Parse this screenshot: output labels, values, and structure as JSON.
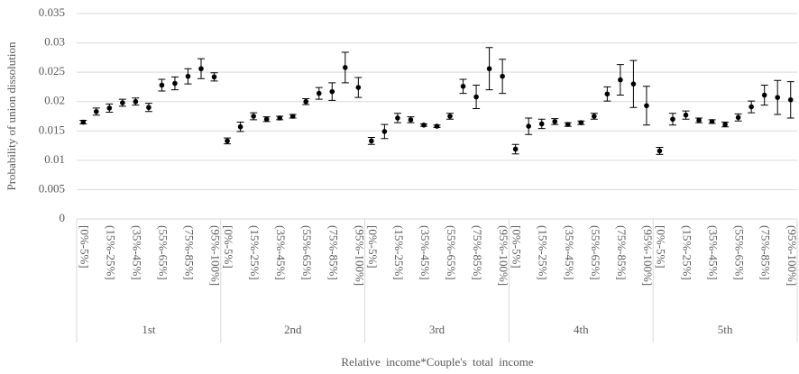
{
  "chart_data": {
    "type": "errorbar",
    "y_label": "Probability of union dissolution",
    "x_label": "Relative income*Couple's total income",
    "categories": [
      "[0%-5%]",
      null,
      "(15%-25%]",
      null,
      "(35%-45%]",
      null,
      "(55%-65%]",
      null,
      "(75%-85%]",
      null,
      "(95%-100%]"
    ],
    "groups": [
      {
        "name": "1st",
        "values": [
          0.0165,
          0.0183,
          0.0189,
          0.0198,
          0.02,
          0.019,
          0.0228,
          0.0231,
          0.0243,
          0.0256,
          0.0242
        ],
        "errors": [
          0.0003,
          0.0006,
          0.0007,
          0.0006,
          0.0006,
          0.0007,
          0.001,
          0.0011,
          0.0013,
          0.0017,
          0.0007
        ]
      },
      {
        "name": "2nd",
        "values": [
          0.0133,
          0.0157,
          0.0175,
          0.017,
          0.0172,
          0.0175,
          0.02,
          0.0214,
          0.0217,
          0.0258,
          0.0224
        ],
        "errors": [
          0.0005,
          0.0008,
          0.0006,
          0.0004,
          0.0003,
          0.0003,
          0.0005,
          0.001,
          0.0015,
          0.0026,
          0.0017
        ]
      },
      {
        "name": "3rd",
        "values": [
          0.0133,
          0.0149,
          0.0172,
          0.0169,
          0.016,
          0.0158,
          0.0175,
          0.0226,
          0.0208,
          0.0256,
          0.0243
        ],
        "errors": [
          0.0006,
          0.0012,
          0.0008,
          0.0005,
          0.0002,
          0.0002,
          0.0005,
          0.0012,
          0.002,
          0.0036,
          0.0029
        ]
      },
      {
        "name": "4th",
        "values": [
          0.0119,
          0.0158,
          0.0162,
          0.0166,
          0.0161,
          0.0164,
          0.0175,
          0.0213,
          0.0237,
          0.023,
          0.0193
        ],
        "errors": [
          0.0008,
          0.0014,
          0.0008,
          0.0005,
          0.0003,
          0.0003,
          0.0005,
          0.0012,
          0.0026,
          0.004,
          0.0033
        ]
      },
      {
        "name": "5th",
        "values": [
          0.0116,
          0.017,
          0.0177,
          0.0168,
          0.0166,
          0.0161,
          0.0173,
          0.0191,
          0.0211,
          0.0207,
          0.0203
        ],
        "errors": [
          0.0006,
          0.001,
          0.0007,
          0.0004,
          0.0003,
          0.0004,
          0.0006,
          0.001,
          0.0017,
          0.0029,
          0.0031
        ]
      }
    ],
    "color": "#000000",
    "ylim": [
      0,
      0.035
    ],
    "yticks": [
      0,
      0.005,
      0.01,
      0.015,
      0.02,
      0.025,
      0.03,
      0.035
    ],
    "grid": true
  }
}
